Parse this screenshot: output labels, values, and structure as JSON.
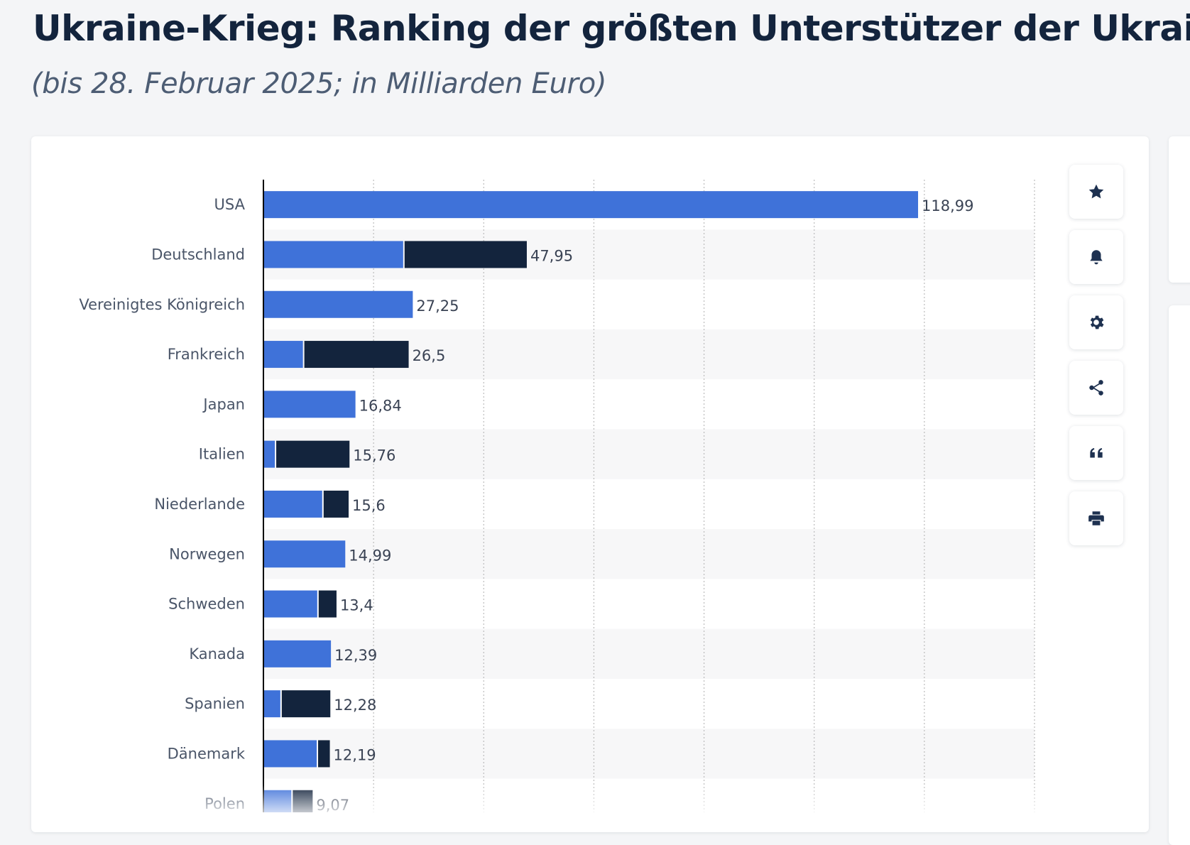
{
  "page": {
    "title": "Ukraine-Krieg: Ranking der größten Unterstützer der Ukraine",
    "subtitle": "(bis 28. Februar 2025; in Milliarden Euro)"
  },
  "toolbar": {
    "buttons": [
      {
        "icon": "star-icon"
      },
      {
        "icon": "bell-icon"
      },
      {
        "icon": "gear-icon"
      },
      {
        "icon": "share-icon"
      },
      {
        "icon": "quote-icon"
      },
      {
        "icon": "print-icon"
      }
    ]
  },
  "colors": {
    "series1": "#3f72d9",
    "series2": "#13243d",
    "band": "#f7f7f8",
    "grid": "#bcbcbc"
  },
  "chart_data": {
    "type": "bar",
    "orientation": "horizontal",
    "stacked": true,
    "categories": [
      "USA",
      "Deutschland",
      "Vereinigtes Königreich",
      "Frankreich",
      "Japan",
      "Italien",
      "Niederlande",
      "Norwegen",
      "Schweden",
      "Kanada",
      "Spanien",
      "Dänemark",
      "Polen"
    ],
    "series": [
      {
        "values": [
          118.99,
          25.5,
          27.25,
          7.3,
          16.84,
          2.2,
          10.8,
          14.99,
          9.9,
          12.39,
          3.2,
          9.8,
          5.2
        ],
        "color": "#3f72d9"
      },
      {
        "values": [
          0,
          22.45,
          0,
          19.2,
          0,
          13.56,
          4.8,
          0,
          3.5,
          0,
          9.08,
          2.39,
          3.87
        ],
        "color": "#13243d"
      }
    ],
    "totals": [
      "118,99",
      "47,95",
      "27,25",
      "26,5",
      "16,84",
      "15,76",
      "15,6",
      "14,99",
      "13,4",
      "12,39",
      "12,28",
      "12,19",
      "9,07"
    ],
    "xlim": [
      0,
      140
    ],
    "grid": true,
    "legend": "none"
  }
}
